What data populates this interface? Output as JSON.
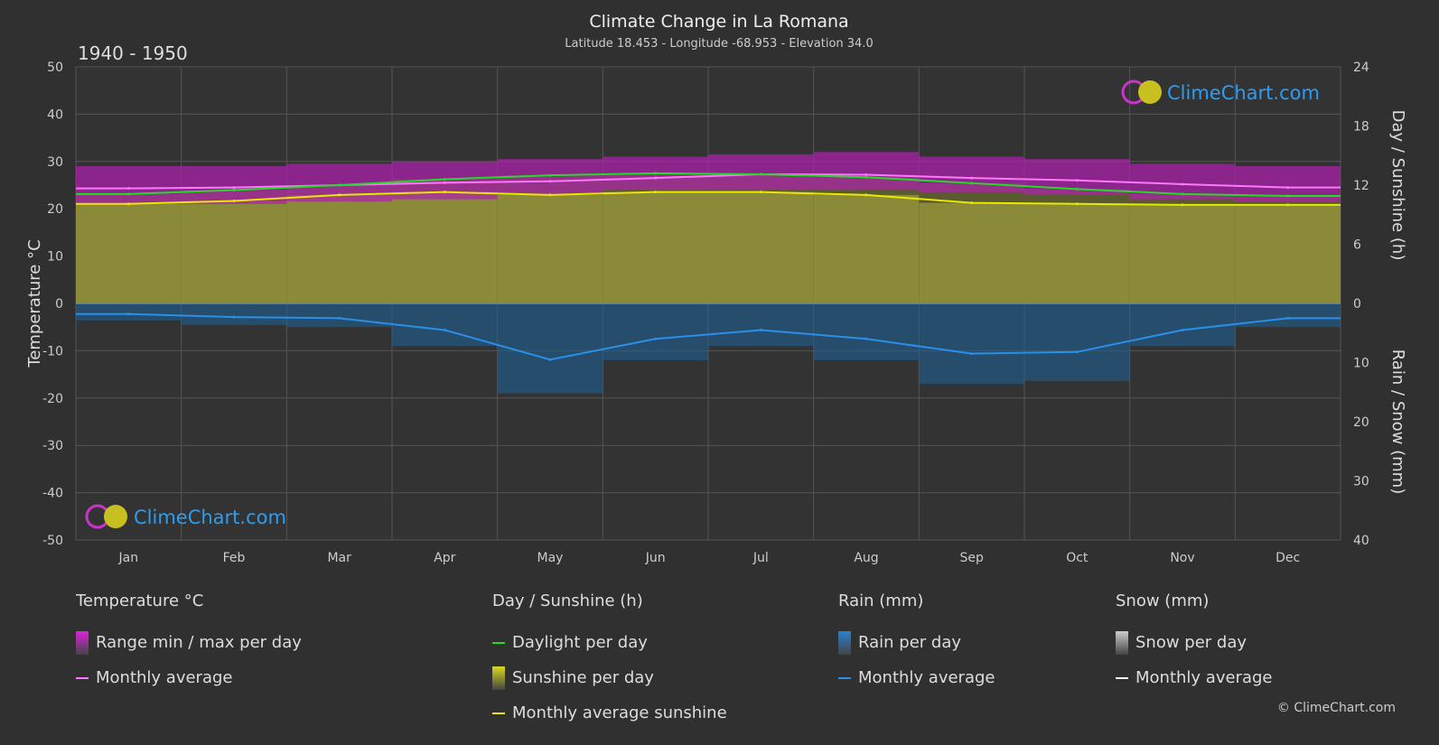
{
  "header": {
    "title": "Climate Change in La Romana",
    "subtitle": "Latitude 18.453 - Longitude -68.953 - Elevation 34.0",
    "period": "1940 - 1950"
  },
  "brand": {
    "logo_text": "ClimeChart.com",
    "copyright": "© ClimeChart.com"
  },
  "chart_data": {
    "type": "line",
    "categories": [
      "Jan",
      "Feb",
      "Mar",
      "Apr",
      "May",
      "Jun",
      "Jul",
      "Aug",
      "Sep",
      "Oct",
      "Nov",
      "Dec"
    ],
    "axes": {
      "left": {
        "label": "Temperature °C",
        "range": [
          -50,
          50
        ],
        "ticks": [
          50,
          40,
          30,
          20,
          10,
          0,
          -10,
          -20,
          -30,
          -40,
          -50
        ]
      },
      "right_top": {
        "label": "Day / Sunshine (h)",
        "range": [
          0,
          24
        ],
        "ticks": [
          24,
          18,
          12,
          6,
          0
        ]
      },
      "right_bottom": {
        "label": "Rain / Snow (mm)",
        "range": [
          0,
          40
        ],
        "ticks": [
          0,
          10,
          20,
          30,
          40
        ]
      }
    },
    "grid": true,
    "series": [
      {
        "name": "Monthly average",
        "group": "Temperature °C",
        "color": "#ff77ff",
        "values": [
          24.3,
          24.5,
          25.0,
          25.5,
          25.8,
          26.5,
          27.3,
          27.2,
          26.5,
          26.0,
          25.2,
          24.5
        ]
      },
      {
        "name": "Daylight per day",
        "group": "Day / Sunshine (h)",
        "color": "#22dd22",
        "values": [
          11.1,
          11.5,
          12.0,
          12.6,
          13.0,
          13.2,
          13.1,
          12.8,
          12.2,
          11.6,
          11.1,
          10.9
        ]
      },
      {
        "name": "Monthly average sunshine",
        "group": "Day / Sunshine (h)",
        "color": "#e8e800",
        "values": [
          10.1,
          10.4,
          11.0,
          11.3,
          11.0,
          11.3,
          11.3,
          11.0,
          10.2,
          10.1,
          10.0,
          10.0
        ]
      },
      {
        "name": "Monthly average",
        "group": "Rain (mm)",
        "color": "#2a8fe8",
        "values": [
          1.8,
          2.3,
          2.5,
          4.5,
          9.5,
          6.0,
          4.5,
          6.0,
          8.5,
          8.2,
          4.5,
          2.5
        ]
      }
    ],
    "temp_range_band": {
      "min": [
        21,
        21,
        21.5,
        22,
        23,
        24,
        24,
        24,
        23.5,
        23,
        22,
        21.5
      ],
      "max": [
        29,
        29,
        29.5,
        30,
        30.5,
        31,
        31.5,
        32,
        31,
        30.5,
        29.5,
        29
      ]
    }
  },
  "legend": [
    {
      "title": "Temperature °C",
      "items": [
        {
          "label": "Range min / max per day",
          "type": "box",
          "color": "#dd22dd"
        },
        {
          "label": "Monthly average",
          "type": "line",
          "color": "#ff77ff"
        }
      ]
    },
    {
      "title": "Day / Sunshine (h)",
      "items": [
        {
          "label": "Daylight per day",
          "type": "line",
          "color": "#22dd22"
        },
        {
          "label": "Sunshine per day",
          "type": "box",
          "color": "#d8d820"
        },
        {
          "label": "Monthly average sunshine",
          "type": "line",
          "color": "#e8e800"
        }
      ]
    },
    {
      "title": "Rain (mm)",
      "items": [
        {
          "label": "Rain per day",
          "type": "box",
          "color": "#2a7fd0"
        },
        {
          "label": "Monthly average",
          "type": "line",
          "color": "#2a8fe8"
        }
      ]
    },
    {
      "title": "Snow (mm)",
      "items": [
        {
          "label": "Snow per day",
          "type": "box",
          "color": "#cccccc"
        },
        {
          "label": "Monthly average",
          "type": "line",
          "color": "#ffffff"
        }
      ]
    }
  ]
}
